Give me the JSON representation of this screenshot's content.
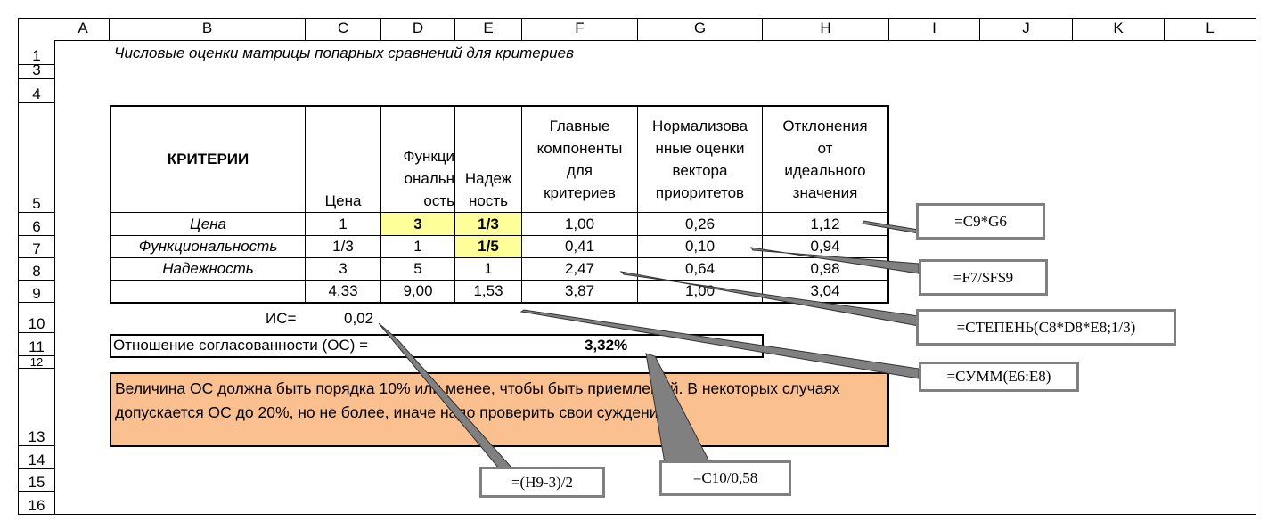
{
  "columns": [
    "",
    "A",
    "B",
    "C",
    "D",
    "E",
    "F",
    "G",
    "H",
    "I",
    "J",
    "K",
    "L"
  ],
  "rows": [
    "1",
    "3",
    "4",
    "5",
    "6",
    "7",
    "8",
    "9",
    "10",
    "11",
    "12",
    "13",
    "14",
    "15",
    "16"
  ],
  "title": "Числовые оценки матрицы попарных сравнений для критериев",
  "table": {
    "headers": {
      "criteria": "КРИТЕРИИ",
      "price": "Цена",
      "func": "Функциональность",
      "func_display": [
        "Функци",
        "ональн",
        "ость"
      ],
      "rel_display": [
        "Надеж",
        "ность"
      ],
      "main": [
        "Главные",
        "компоненты",
        "для",
        "критериев"
      ],
      "norm": [
        "Нормализова",
        "нные оценки",
        "вектора",
        "приоритетов"
      ],
      "dev": [
        "Отклонения",
        "от",
        "идеального",
        "значения"
      ]
    },
    "rows": [
      {
        "name": "Цена",
        "c": "1",
        "d": "3",
        "e": "1/3",
        "f": "1,00",
        "g": "0,26",
        "h": "1,12"
      },
      {
        "name": "Функциональность",
        "c": "1/3",
        "d": "1",
        "e": "1/5",
        "f": "0,41",
        "g": "0,10",
        "h": "0,94"
      },
      {
        "name": "Надежность",
        "c": "3",
        "d": "5",
        "e": "1",
        "f": "2,47",
        "g": "0,64",
        "h": "0,98"
      },
      {
        "name": "",
        "c": "4,33",
        "d": "9,00",
        "e": "1,53",
        "f": "3,87",
        "g": "1,00",
        "h": "3,04"
      }
    ]
  },
  "is_label": "ИС=",
  "is_value": "0,02",
  "os_label": "Отношение согласованности (ОС) =",
  "os_value": "3,32%",
  "note": "Величина ОС должна быть порядка 10% или менее, чтобы быть приемлемой. В некоторых случаях допускается ОС до 20%, но не более, иначе надо проверить свои суждения.",
  "callouts": {
    "c1": "=C9*G6",
    "c2": "=F7/$F$9",
    "c3": "=СТЕПЕНЬ(C8*D8*E8;1/3)",
    "c4": "=СУММ(E6:E8)",
    "c5": "=(H9-3)/2",
    "c6": "=C10/0,58"
  },
  "colors": {
    "yellow": "#ffff99",
    "orange": "#fac090",
    "callout_border": "#808080"
  }
}
